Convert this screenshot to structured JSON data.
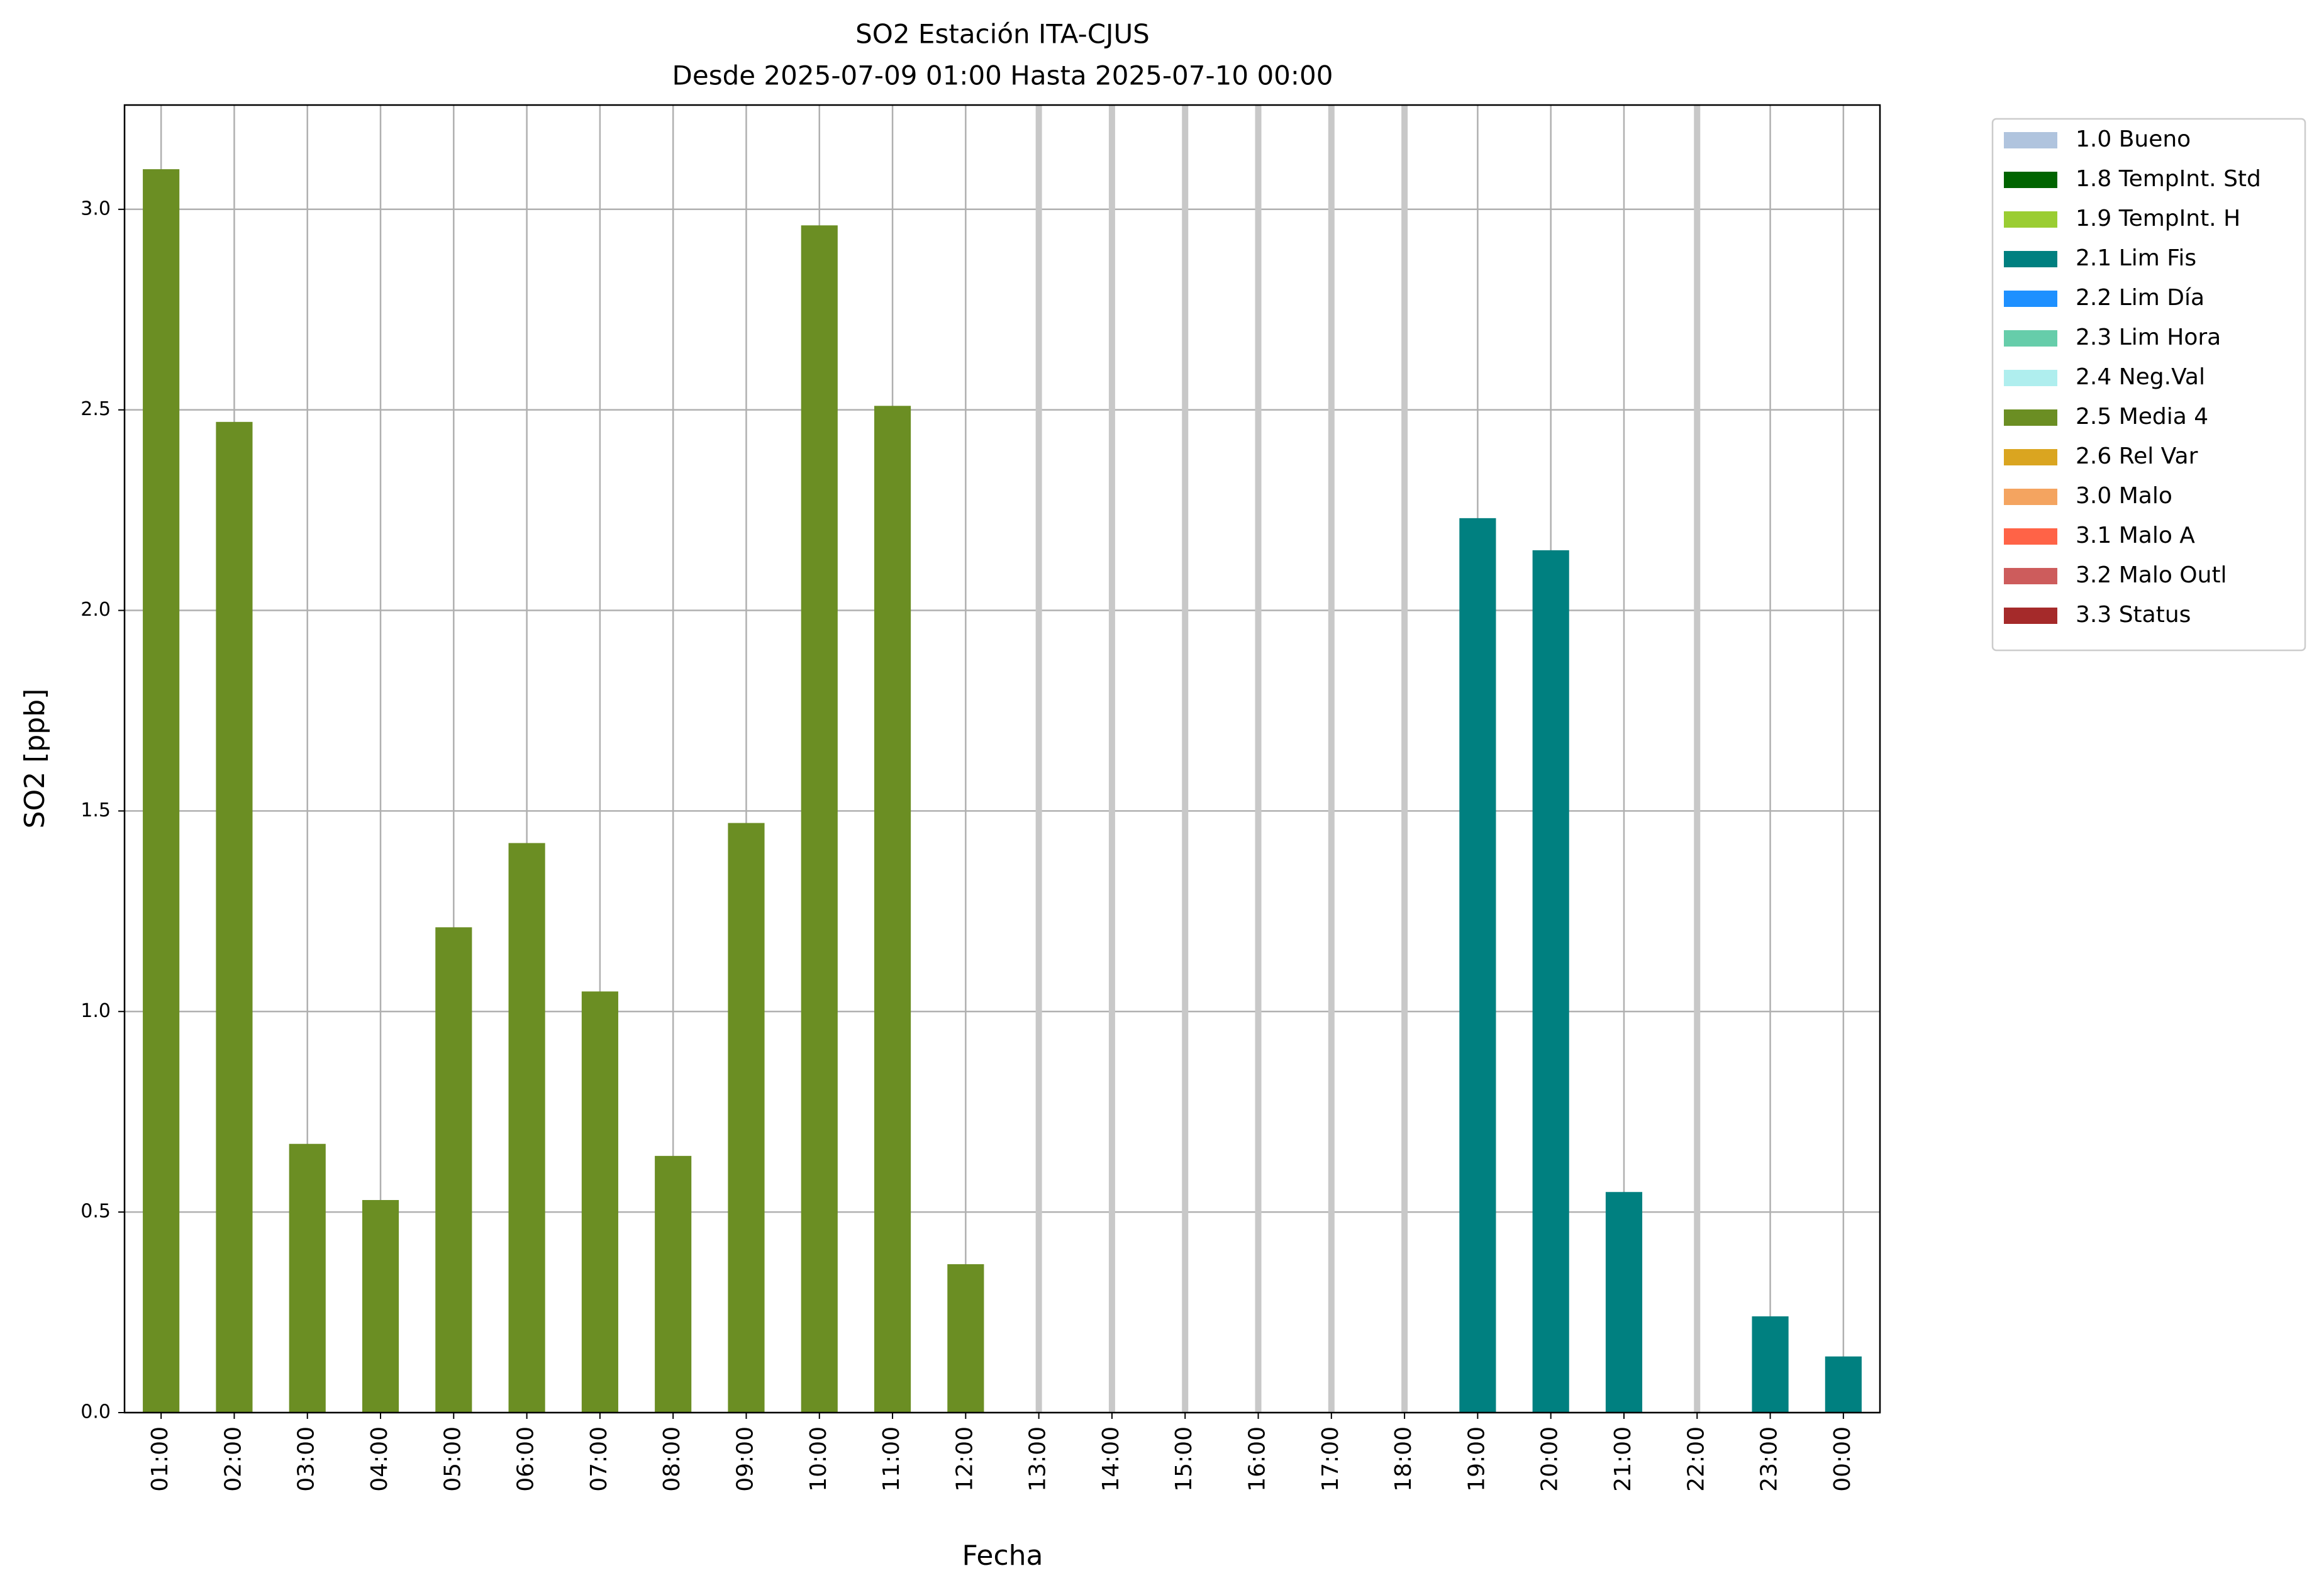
{
  "chart_data": {
    "type": "bar",
    "title": "SO2 Estación ITA-CJUS",
    "subtitle": "Desde 2025-07-09 01:00 Hasta 2025-07-10 00:00",
    "x_label": "Fecha",
    "y_label": "SO2 [ppb]",
    "categories": [
      "01:00",
      "02:00",
      "03:00",
      "04:00",
      "05:00",
      "06:00",
      "07:00",
      "08:00",
      "09:00",
      "10:00",
      "11:00",
      "12:00",
      "13:00",
      "14:00",
      "15:00",
      "16:00",
      "17:00",
      "18:00",
      "19:00",
      "20:00",
      "21:00",
      "22:00",
      "23:00",
      "00:00"
    ],
    "series": [
      {
        "name": "1.0 Bueno",
        "color": "#b0c4de"
      },
      {
        "name": "1.8 TempInt. Std",
        "color": "#006400"
      },
      {
        "name": "1.9 TempInt. H",
        "color": "#9acd32"
      },
      {
        "name": "2.1 Lim Fis",
        "color": "#008080",
        "values": [
          null,
          null,
          null,
          null,
          null,
          null,
          null,
          null,
          null,
          null,
          null,
          null,
          null,
          null,
          null,
          null,
          null,
          null,
          2.23,
          2.15,
          0.55,
          null,
          0.24,
          0.14
        ]
      },
      {
        "name": "2.2 Lim Día",
        "color": "#1e90ff"
      },
      {
        "name": "2.3 Lim Hora",
        "color": "#66cdaa"
      },
      {
        "name": "2.4 Neg.Val",
        "color": "#afeeee"
      },
      {
        "name": "2.5 Media 4",
        "color": "#6b8e23",
        "values": [
          3.1,
          2.47,
          0.67,
          0.53,
          1.21,
          1.42,
          1.05,
          0.64,
          1.47,
          2.96,
          2.51,
          0.37,
          null,
          null,
          null,
          null,
          null,
          null,
          null,
          null,
          null,
          null,
          null,
          null
        ]
      },
      {
        "name": "2.6 Rel Var",
        "color": "#daa520"
      },
      {
        "name": "3.0 Malo",
        "color": "#f4a460"
      },
      {
        "name": "3.1 Malo A",
        "color": "#ff6347"
      },
      {
        "name": "3.2 Malo Outl",
        "color": "#cd5c5c"
      },
      {
        "name": "3.3 Status",
        "color": "#a52a2a"
      }
    ],
    "ylim": [
      0,
      3.26
    ],
    "yticks": [
      {
        "value": 0,
        "label": "0.0"
      },
      0.5,
      {
        "value": 1,
        "label": "1.0"
      },
      1.5,
      {
        "value": 2,
        "label": "2.0"
      },
      2.5,
      {
        "value": 3,
        "label": "3.0"
      }
    ],
    "grid": true
  }
}
